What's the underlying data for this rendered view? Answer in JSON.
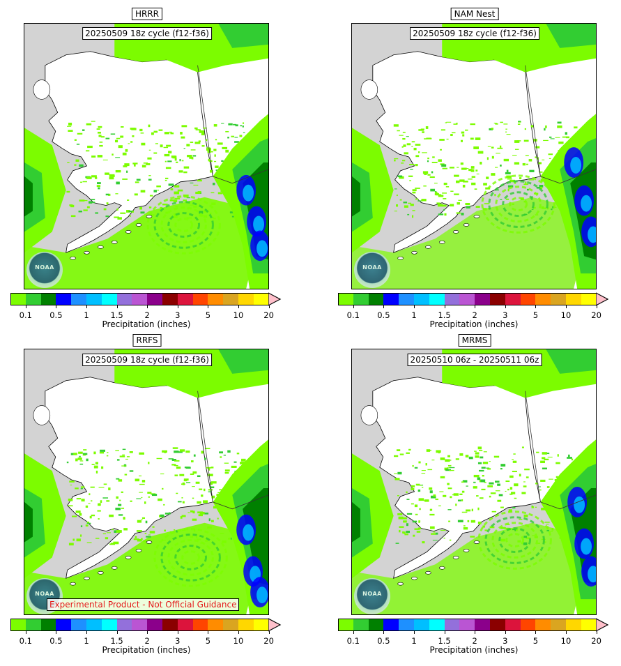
{
  "panels": [
    {
      "title": "HRRR",
      "cycle": "20250509 18z cycle (f12-f36)",
      "disclaimer": ""
    },
    {
      "title": "NAM Nest",
      "cycle": "20250509 18z cycle (f12-f36)",
      "disclaimer": ""
    },
    {
      "title": "RRFS",
      "cycle": "20250509 18z cycle (f12-f36)",
      "disclaimer": "Experimental Product - Not Official Guidance"
    },
    {
      "title": "MRMS",
      "cycle": "20250510 06z - 20250511 06z",
      "disclaimer": ""
    }
  ],
  "logo_text": "NOAA",
  "colorbar": {
    "label": "Precipitation (inches)",
    "ticks": [
      "0.1",
      "0.5",
      "1",
      "1.5",
      "2",
      "3",
      "5",
      "10",
      "20"
    ],
    "colors": [
      "#7cfc00",
      "#32cd32",
      "#008000",
      "#0000ff",
      "#1e90ff",
      "#00bfff",
      "#00ffff",
      "#9370db",
      "#ba55d3",
      "#8b008b",
      "#8b0000",
      "#dc143c",
      "#ff4500",
      "#ff8c00",
      "#daa520",
      "#ffd700",
      "#ffff00"
    ],
    "extend_color": "#ffc0cb"
  },
  "colors": {
    "land_no_precip": "#ffffff",
    "ocean_no_precip": "#d3d3d3",
    "coastline": "#000000"
  }
}
